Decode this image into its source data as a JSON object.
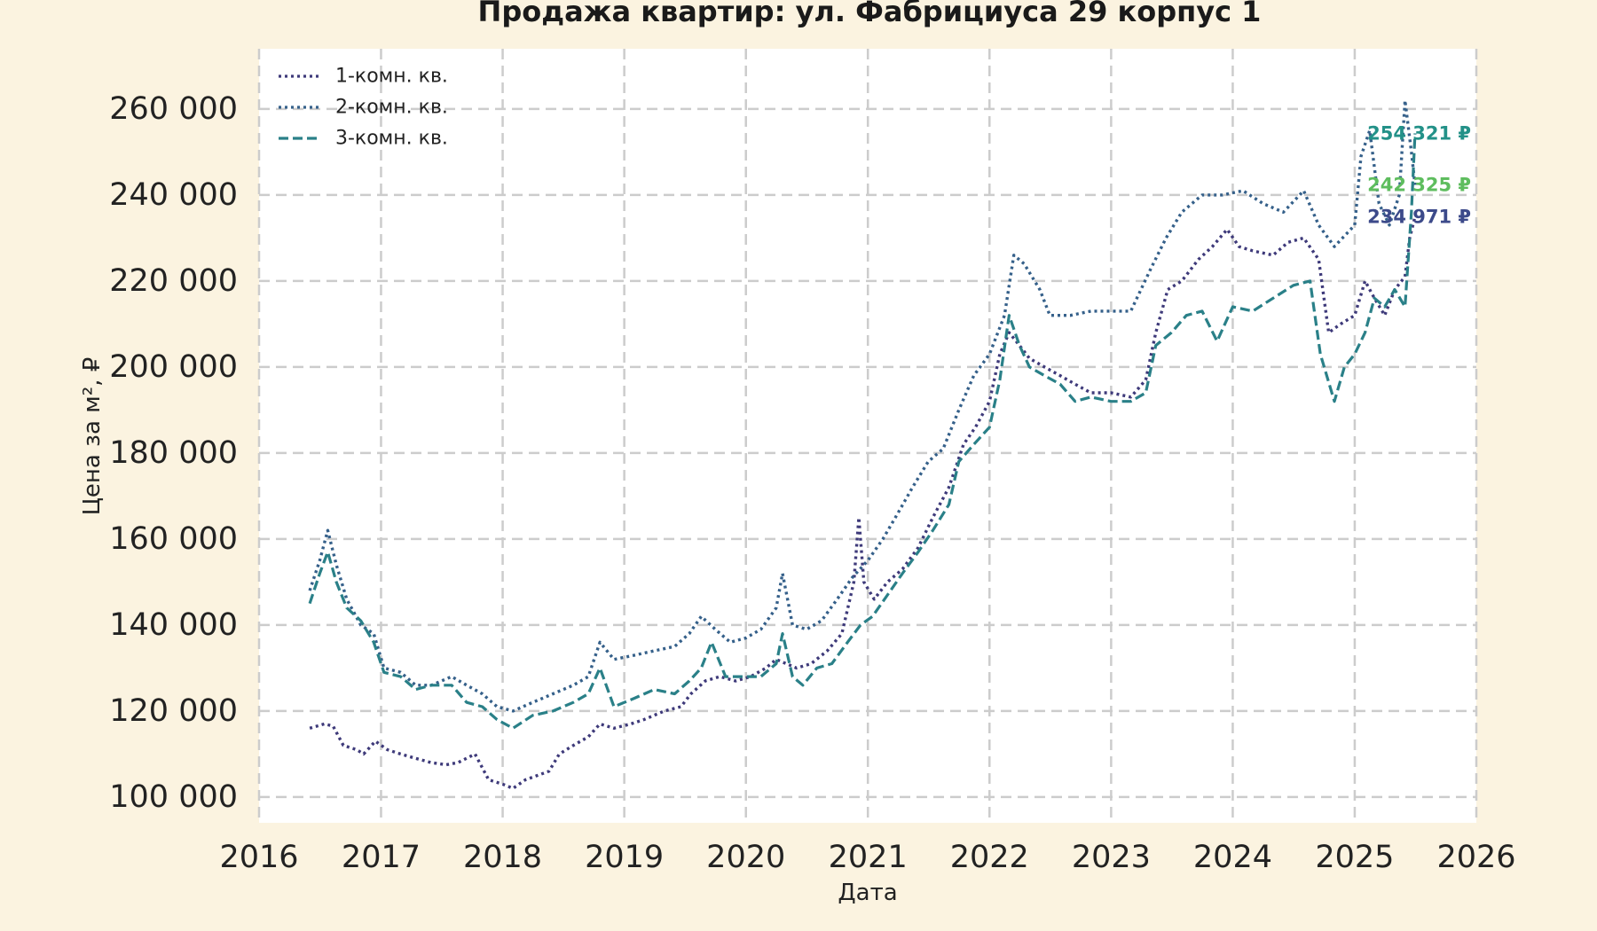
{
  "chart_data": {
    "type": "line",
    "title": "Продажа квартир: ул. Фабрициуса 29 корпус 1",
    "xlabel": "Дата",
    "ylabel": "Цена за м², ₽",
    "xlim": [
      "2016-01-01",
      "2026-01-01"
    ],
    "ylim": [
      94000,
      274000
    ],
    "x_ticks": [
      "2016",
      "2017",
      "2018",
      "2019",
      "2020",
      "2021",
      "2022",
      "2023",
      "2024",
      "2025",
      "2026"
    ],
    "y_ticks": [
      100000,
      120000,
      140000,
      160000,
      180000,
      200000,
      220000,
      240000,
      260000
    ],
    "y_tick_labels": [
      "100 000",
      "120 000",
      "140 000",
      "160 000",
      "180 000",
      "200 000",
      "220 000",
      "240 000",
      "260 000"
    ],
    "grid": true,
    "legend_position": "top-left",
    "series": [
      {
        "name": "1-комн. кв.",
        "color": "#3e3a7a",
        "dash": "dotted",
        "points": [
          [
            "2016-06-01",
            116000
          ],
          [
            "2016-07-15",
            117000
          ],
          [
            "2016-08-10",
            116500
          ],
          [
            "2016-09-10",
            112000
          ],
          [
            "2016-10-20",
            111000
          ],
          [
            "2016-11-10",
            110000
          ],
          [
            "2016-12-15",
            113000
          ],
          [
            "2017-01-20",
            111000
          ],
          [
            "2017-03-01",
            110000
          ],
          [
            "2017-04-15",
            109000
          ],
          [
            "2017-06-01",
            108000
          ],
          [
            "2017-07-15",
            107500
          ],
          [
            "2017-08-20",
            108000
          ],
          [
            "2017-10-10",
            110000
          ],
          [
            "2017-11-20",
            104000
          ],
          [
            "2018-01-01",
            103000
          ],
          [
            "2018-02-01",
            102000
          ],
          [
            "2018-03-10",
            104000
          ],
          [
            "2018-04-15",
            105000
          ],
          [
            "2018-05-20",
            106000
          ],
          [
            "2018-06-20",
            110000
          ],
          [
            "2018-08-01",
            112000
          ],
          [
            "2018-09-15",
            114000
          ],
          [
            "2018-10-20",
            117000
          ],
          [
            "2018-12-01",
            116000
          ],
          [
            "2019-01-20",
            117000
          ],
          [
            "2019-03-01",
            118000
          ],
          [
            "2019-05-01",
            120000
          ],
          [
            "2019-06-20",
            121000
          ],
          [
            "2019-07-20",
            124000
          ],
          [
            "2019-09-01",
            127000
          ],
          [
            "2019-10-15",
            128000
          ],
          [
            "2019-12-01",
            127000
          ],
          [
            "2020-01-15",
            128000
          ],
          [
            "2020-03-01",
            130000
          ],
          [
            "2020-04-01",
            132000
          ],
          [
            "2020-05-01",
            131000
          ],
          [
            "2020-06-01",
            130000
          ],
          [
            "2020-07-15",
            131000
          ],
          [
            "2020-09-01",
            134000
          ],
          [
            "2020-10-15",
            138000
          ],
          [
            "2020-11-20",
            150000
          ],
          [
            "2020-12-05",
            165000
          ],
          [
            "2020-12-20",
            150000
          ],
          [
            "2021-01-20",
            146000
          ],
          [
            "2021-03-01",
            150000
          ],
          [
            "2021-04-15",
            153000
          ],
          [
            "2021-06-01",
            158000
          ],
          [
            "2021-07-15",
            165000
          ],
          [
            "2021-09-01",
            172000
          ],
          [
            "2021-10-15",
            182000
          ],
          [
            "2021-11-20",
            186000
          ],
          [
            "2022-01-01",
            192000
          ],
          [
            "2022-02-01",
            203000
          ],
          [
            "2022-03-01",
            208000
          ],
          [
            "2022-04-01",
            205000
          ],
          [
            "2022-05-01",
            202000
          ],
          [
            "2022-06-15",
            200000
          ],
          [
            "2022-08-01",
            198000
          ],
          [
            "2022-09-15",
            196000
          ],
          [
            "2022-11-01",
            194000
          ],
          [
            "2023-01-01",
            194000
          ],
          [
            "2023-03-01",
            193000
          ],
          [
            "2023-04-15",
            197000
          ],
          [
            "2023-05-15",
            208000
          ],
          [
            "2023-06-20",
            218000
          ],
          [
            "2023-08-01",
            220000
          ],
          [
            "2023-09-20",
            225000
          ],
          [
            "2023-11-01",
            228000
          ],
          [
            "2023-12-15",
            232000
          ],
          [
            "2024-01-20",
            228000
          ],
          [
            "2024-03-01",
            227000
          ],
          [
            "2024-05-01",
            226000
          ],
          [
            "2024-06-15",
            229000
          ],
          [
            "2024-08-01",
            230000
          ],
          [
            "2024-09-15",
            225000
          ],
          [
            "2024-10-15",
            208000
          ],
          [
            "2024-11-20",
            210000
          ],
          [
            "2025-01-01",
            212000
          ],
          [
            "2025-02-01",
            220000
          ],
          [
            "2025-03-01",
            216000
          ],
          [
            "2025-04-01",
            212000
          ],
          [
            "2025-05-01",
            218000
          ],
          [
            "2025-06-01",
            221000
          ],
          [
            "2025-06-15",
            230000
          ],
          [
            "2025-07-01",
            234971
          ]
        ]
      },
      {
        "name": "2-комн. кв.",
        "color": "#35608a",
        "dash": "dotted",
        "points": [
          [
            "2016-06-01",
            148000
          ],
          [
            "2016-07-01",
            155000
          ],
          [
            "2016-07-25",
            162000
          ],
          [
            "2016-08-20",
            154000
          ],
          [
            "2016-09-20",
            146000
          ],
          [
            "2016-11-01",
            140000
          ],
          [
            "2016-12-10",
            138000
          ],
          [
            "2017-01-10",
            130000
          ],
          [
            "2017-03-01",
            129000
          ],
          [
            "2017-04-15",
            126000
          ],
          [
            "2017-06-01",
            126000
          ],
          [
            "2017-08-01",
            128000
          ],
          [
            "2017-09-15",
            126000
          ],
          [
            "2017-11-01",
            124000
          ],
          [
            "2017-12-15",
            121000
          ],
          [
            "2018-02-01",
            120000
          ],
          [
            "2018-04-01",
            122000
          ],
          [
            "2018-06-01",
            124000
          ],
          [
            "2018-08-01",
            126000
          ],
          [
            "2018-09-15",
            128000
          ],
          [
            "2018-10-20",
            136000
          ],
          [
            "2018-12-01",
            132000
          ],
          [
            "2019-02-01",
            133000
          ],
          [
            "2019-04-01",
            134000
          ],
          [
            "2019-06-01",
            135000
          ],
          [
            "2019-07-15",
            138000
          ],
          [
            "2019-08-20",
            142000
          ],
          [
            "2019-10-01",
            139000
          ],
          [
            "2019-11-15",
            136000
          ],
          [
            "2020-01-01",
            137000
          ],
          [
            "2020-02-15",
            139000
          ],
          [
            "2020-04-01",
            144000
          ],
          [
            "2020-04-20",
            152000
          ],
          [
            "2020-05-20",
            140000
          ],
          [
            "2020-07-01",
            139000
          ],
          [
            "2020-08-15",
            141000
          ],
          [
            "2020-10-01",
            146000
          ],
          [
            "2020-11-15",
            151000
          ],
          [
            "2021-01-01",
            155000
          ],
          [
            "2021-02-15",
            160000
          ],
          [
            "2021-04-01",
            166000
          ],
          [
            "2021-05-15",
            172000
          ],
          [
            "2021-07-01",
            178000
          ],
          [
            "2021-08-15",
            181000
          ],
          [
            "2021-10-01",
            190000
          ],
          [
            "2021-11-15",
            198000
          ],
          [
            "2022-01-01",
            203000
          ],
          [
            "2022-02-15",
            212000
          ],
          [
            "2022-03-15",
            226000
          ],
          [
            "2022-04-15",
            224000
          ],
          [
            "2022-06-01",
            218000
          ],
          [
            "2022-07-01",
            212000
          ],
          [
            "2022-09-01",
            212000
          ],
          [
            "2022-11-01",
            213000
          ],
          [
            "2023-01-01",
            213000
          ],
          [
            "2023-03-01",
            213000
          ],
          [
            "2023-05-01",
            223000
          ],
          [
            "2023-06-15",
            230000
          ],
          [
            "2023-08-01",
            236000
          ],
          [
            "2023-10-01",
            240000
          ],
          [
            "2023-12-01",
            240000
          ],
          [
            "2024-02-01",
            241000
          ],
          [
            "2024-04-01",
            238000
          ],
          [
            "2024-06-01",
            236000
          ],
          [
            "2024-08-01",
            241000
          ],
          [
            "2024-09-15",
            233000
          ],
          [
            "2024-11-01",
            228000
          ],
          [
            "2025-01-01",
            233000
          ],
          [
            "2025-01-20",
            249000
          ],
          [
            "2025-02-15",
            255000
          ],
          [
            "2025-03-15",
            238000
          ],
          [
            "2025-04-15",
            233000
          ],
          [
            "2025-05-15",
            240000
          ],
          [
            "2025-06-01",
            262000
          ],
          [
            "2025-06-20",
            250000
          ],
          [
            "2025-07-01",
            242325
          ]
        ]
      },
      {
        "name": "3-комн. кв.",
        "color": "#2a8088",
        "dash": "dashed",
        "points": [
          [
            "2016-06-01",
            145000
          ],
          [
            "2016-07-01",
            152000
          ],
          [
            "2016-07-25",
            157000
          ],
          [
            "2016-08-20",
            150000
          ],
          [
            "2016-09-20",
            144000
          ],
          [
            "2016-11-01",
            141000
          ],
          [
            "2016-12-10",
            136000
          ],
          [
            "2017-01-10",
            129000
          ],
          [
            "2017-03-01",
            128000
          ],
          [
            "2017-04-15",
            125000
          ],
          [
            "2017-06-01",
            126000
          ],
          [
            "2017-08-01",
            126000
          ],
          [
            "2017-09-15",
            122000
          ],
          [
            "2017-11-01",
            121000
          ],
          [
            "2017-12-15",
            118000
          ],
          [
            "2018-02-01",
            116000
          ],
          [
            "2018-04-01",
            119000
          ],
          [
            "2018-06-01",
            120000
          ],
          [
            "2018-08-01",
            122000
          ],
          [
            "2018-09-15",
            124000
          ],
          [
            "2018-10-20",
            130000
          ],
          [
            "2018-12-01",
            121000
          ],
          [
            "2019-02-01",
            123000
          ],
          [
            "2019-04-01",
            125000
          ],
          [
            "2019-06-01",
            124000
          ],
          [
            "2019-07-15",
            127000
          ],
          [
            "2019-08-20",
            130000
          ],
          [
            "2019-09-20",
            136000
          ],
          [
            "2019-11-01",
            128000
          ],
          [
            "2020-01-01",
            128000
          ],
          [
            "2020-02-15",
            128000
          ],
          [
            "2020-04-01",
            131000
          ],
          [
            "2020-04-20",
            138000
          ],
          [
            "2020-05-20",
            128000
          ],
          [
            "2020-06-20",
            126000
          ],
          [
            "2020-08-01",
            130000
          ],
          [
            "2020-09-15",
            131000
          ],
          [
            "2020-11-01",
            136000
          ],
          [
            "2020-12-10",
            140000
          ],
          [
            "2021-01-15",
            142000
          ],
          [
            "2021-03-01",
            147000
          ],
          [
            "2021-04-15",
            152000
          ],
          [
            "2021-06-01",
            157000
          ],
          [
            "2021-07-15",
            162000
          ],
          [
            "2021-09-01",
            168000
          ],
          [
            "2021-10-01",
            178000
          ],
          [
            "2021-11-15",
            182000
          ],
          [
            "2022-01-01",
            186000
          ],
          [
            "2022-02-01",
            197000
          ],
          [
            "2022-03-01",
            212000
          ],
          [
            "2022-04-01",
            205000
          ],
          [
            "2022-05-01",
            200000
          ],
          [
            "2022-06-15",
            198000
          ],
          [
            "2022-08-01",
            196000
          ],
          [
            "2022-09-15",
            192000
          ],
          [
            "2022-11-01",
            193000
          ],
          [
            "2023-01-01",
            192000
          ],
          [
            "2023-03-01",
            192000
          ],
          [
            "2023-04-15",
            194000
          ],
          [
            "2023-05-15",
            205000
          ],
          [
            "2023-07-01",
            208000
          ],
          [
            "2023-08-15",
            212000
          ],
          [
            "2023-10-01",
            213000
          ],
          [
            "2023-11-15",
            206000
          ],
          [
            "2024-01-01",
            214000
          ],
          [
            "2024-03-01",
            213000
          ],
          [
            "2024-05-01",
            216000
          ],
          [
            "2024-07-01",
            219000
          ],
          [
            "2024-08-20",
            220000
          ],
          [
            "2024-09-20",
            203000
          ],
          [
            "2024-11-01",
            192000
          ],
          [
            "2024-12-01",
            200000
          ],
          [
            "2025-01-01",
            203000
          ],
          [
            "2025-02-01",
            208000
          ],
          [
            "2025-03-01",
            216000
          ],
          [
            "2025-04-01",
            214000
          ],
          [
            "2025-05-01",
            218000
          ],
          [
            "2025-06-01",
            214000
          ],
          [
            "2025-06-20",
            236000
          ],
          [
            "2025-07-01",
            254321
          ]
        ]
      }
    ],
    "end_labels": [
      {
        "text": "254 321 ₽",
        "value": 254321,
        "color": "#239188"
      },
      {
        "text": "242 325 ₽",
        "value": 242325,
        "color": "#5ebd5e"
      },
      {
        "text": "234 971 ₽",
        "value": 234971,
        "color": "#3c4a8a"
      }
    ]
  }
}
